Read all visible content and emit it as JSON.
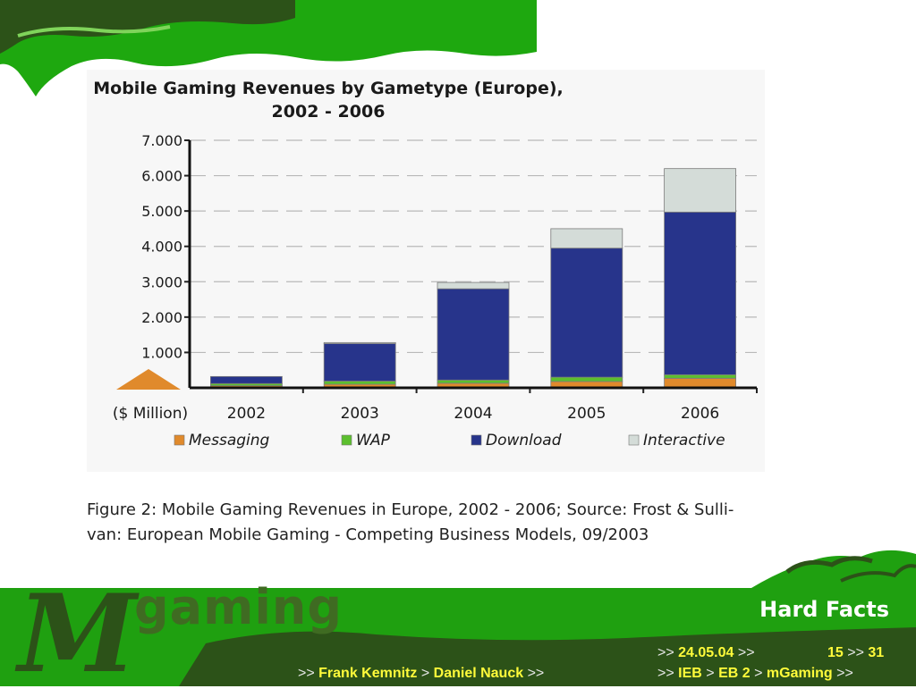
{
  "slide": {
    "title": "Hard Facts",
    "logo": {
      "initial": "M",
      "word": "gaming"
    },
    "date": {
      "prefix": ">>",
      "value": "24.05.04",
      "suffix": ">>"
    },
    "page": {
      "current": "15",
      "sep": ">>",
      "total": "31"
    },
    "authors": {
      "lead": ">>",
      "first": "Frank Kemnitz",
      "sep": ">",
      "second": "Daniel Nauck",
      "tail": ">>"
    },
    "breadcrumb": {
      "lead": ">>",
      "a": "IEB",
      "sep1": ">",
      "b": "EB 2",
      "sep2": ">",
      "c": "mGaming",
      "tail": ">>"
    }
  },
  "caption": {
    "line1": "Figure 2: Mobile Gaming Revenues in Europe, 2002 - 2006; Source: Frost & Sulli-",
    "line2": "van: European Mobile Gaming - Competing Business Models, 09/2003"
  },
  "chart_data": {
    "type": "bar",
    "stacked": true,
    "title": "Mobile Gaming Revenues by Gametype (Europe),",
    "subtitle": "2002 - 2006",
    "xlabel": "($ Million)",
    "ylabel": "",
    "ylim": [
      0,
      7000
    ],
    "y_ticks": [
      "7.000",
      "6.000",
      "5.000",
      "4.000",
      "3.000",
      "2.000",
      "1.000"
    ],
    "y_tick_values": [
      7000,
      6000,
      5000,
      4000,
      3000,
      2000,
      1000
    ],
    "grid": true,
    "legend_position": "bottom",
    "categories": [
      "2002",
      "2003",
      "2004",
      "2005",
      "2006"
    ],
    "series": [
      {
        "name": "Messaging",
        "color": "#e08a2c",
        "values": [
          60,
          100,
          130,
          180,
          270
        ]
      },
      {
        "name": "WAP",
        "color": "#5cbf2e",
        "values": [
          60,
          90,
          90,
          120,
          100
        ]
      },
      {
        "name": "Download",
        "color": "#27348b",
        "values": [
          200,
          1060,
          2580,
          3650,
          4600
        ]
      },
      {
        "name": "Interactive",
        "color": "#d4dcd8",
        "values": [
          0,
          30,
          180,
          550,
          1230
        ]
      }
    ]
  },
  "colors": {
    "footer_green": "#1fa010",
    "frame_green": "#1ea80f",
    "dark_green": "#2c5218",
    "accent_yellow": "#fffb3a"
  }
}
